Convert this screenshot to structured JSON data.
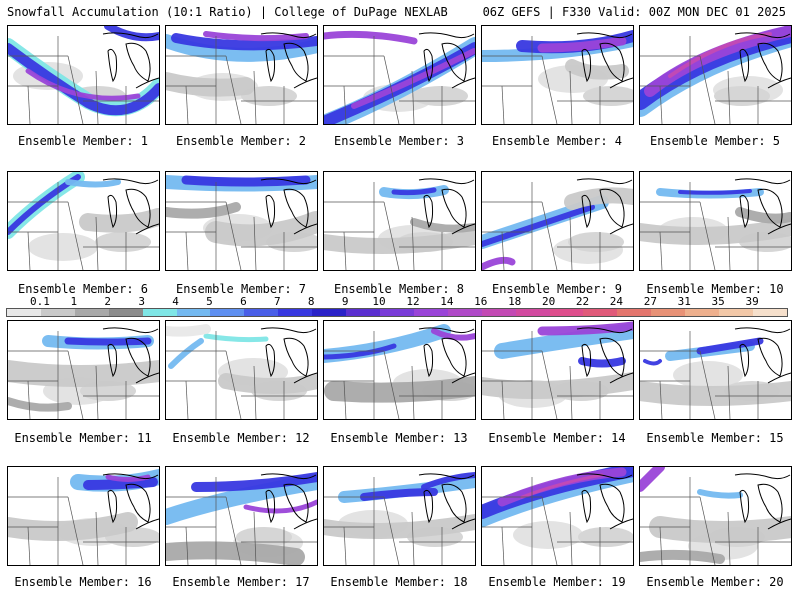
{
  "header": {
    "title": "Snowfall Accumulation (10:1 Ratio) | College of DuPage NEXLAB",
    "run_info": "06Z GEFS | F330 Valid: 00Z MON DEC 01 2025"
  },
  "colorbar": {
    "ticks": [
      "0.1",
      "1",
      "2",
      "3",
      "4",
      "5",
      "6",
      "7",
      "8",
      "9",
      "10",
      "12",
      "14",
      "16",
      "18",
      "20",
      "22",
      "24",
      "27",
      "31",
      "35",
      "39"
    ],
    "colors": [
      "#e8e8e8",
      "#c9c9c9",
      "#a9a9a9",
      "#8c8c8c",
      "#7fe6e6",
      "#74b9f0",
      "#5f8ff0",
      "#4a5fe8",
      "#3838e0",
      "#2a22c8",
      "#5b2fd0",
      "#7a3cd8",
      "#9a45d8",
      "#b04ac8",
      "#c34ab4",
      "#d24aa0",
      "#de4e8c",
      "#e05a7a",
      "#e4766e",
      "#e89277",
      "#eeb08e",
      "#f2c8a8",
      "#f6e0cc"
    ]
  },
  "panels": [
    {
      "label": "Ensemble Member: 1"
    },
    {
      "label": "Ensemble Member: 2"
    },
    {
      "label": "Ensemble Member: 3"
    },
    {
      "label": "Ensemble Member: 4"
    },
    {
      "label": "Ensemble Member: 5"
    },
    {
      "label": "Ensemble Member: 6"
    },
    {
      "label": "Ensemble Member: 7"
    },
    {
      "label": "Ensemble Member: 8"
    },
    {
      "label": "Ensemble Member: 9"
    },
    {
      "label": "Ensemble Member: 10"
    },
    {
      "label": "Ensemble Member: 11"
    },
    {
      "label": "Ensemble Member: 12"
    },
    {
      "label": "Ensemble Member: 13"
    },
    {
      "label": "Ensemble Member: 14"
    },
    {
      "label": "Ensemble Member: 15"
    },
    {
      "label": "Ensemble Member: 16"
    },
    {
      "label": "Ensemble Member: 17"
    },
    {
      "label": "Ensemble Member: 18"
    },
    {
      "label": "Ensemble Member: 19"
    },
    {
      "label": "Ensemble Member: 20"
    }
  ]
}
